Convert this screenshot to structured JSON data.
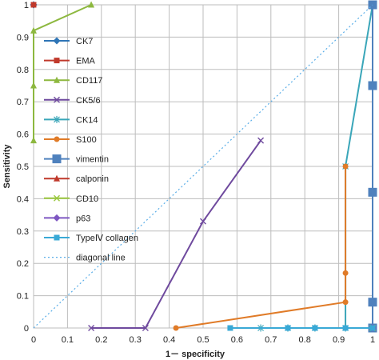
{
  "chart_data": {
    "type": "line",
    "title": "",
    "xlabel": "1－ specificity",
    "ylabel": "Sensitivity",
    "xlim": [
      0,
      1
    ],
    "ylim": [
      0,
      1
    ],
    "x_ticks": [
      "0",
      "0.1",
      "0.2",
      "0.3",
      "0.4",
      "0.5",
      "0.6",
      "0.7",
      "0.8",
      "0.9",
      "1"
    ],
    "y_ticks": [
      "0",
      "0.1",
      "0.2",
      "0.3",
      "0.4",
      "0.5",
      "0.6",
      "0.7",
      "0.8",
      "0.9",
      "1"
    ],
    "grid": true,
    "legend_position": "left",
    "series": [
      {
        "name": "CK7",
        "color": "#2e75b6",
        "marker": "diamond",
        "points": [
          [
            0,
            1
          ],
          [
            0,
            1
          ]
        ]
      },
      {
        "name": "EMA",
        "color": "#c0392b",
        "marker": "square",
        "points": [
          [
            0,
            1
          ],
          [
            0,
            1
          ]
        ]
      },
      {
        "name": "CD117",
        "color": "#8db83f",
        "marker": "triangle",
        "points": [
          [
            0,
            0.58
          ],
          [
            0,
            0.75
          ],
          [
            0,
            0.92
          ],
          [
            0.17,
            1
          ]
        ]
      },
      {
        "name": "CK5/6",
        "color": "#6f4a9e",
        "marker": "x",
        "points": [
          [
            0.17,
            0
          ],
          [
            0.33,
            0
          ],
          [
            0.5,
            0.33
          ],
          [
            0.67,
            0.58
          ]
        ]
      },
      {
        "name": "CK14",
        "color": "#3aa6b9",
        "marker": "star",
        "points": [
          [
            0.67,
            0
          ],
          [
            0.75,
            0
          ],
          [
            0.83,
            0
          ],
          [
            0.92,
            0
          ],
          [
            0.92,
            0.5
          ],
          [
            1,
            1
          ]
        ]
      },
      {
        "name": "S100",
        "color": "#e07b28",
        "marker": "circle",
        "points": [
          [
            0.42,
            0
          ],
          [
            0.92,
            0.08
          ],
          [
            0.92,
            0.17
          ],
          [
            0.92,
            0.5
          ]
        ]
      },
      {
        "name": "vimentin",
        "color": "#4f81bd",
        "marker": "bigsquare",
        "points": [
          [
            1,
            0
          ],
          [
            1,
            0.08
          ],
          [
            1,
            0.42
          ],
          [
            1,
            0.75
          ],
          [
            1,
            1
          ]
        ]
      },
      {
        "name": "calponin",
        "color": "#c0392b",
        "marker": "triangle",
        "points": [
          [
            1,
            0
          ],
          [
            1,
            0
          ]
        ]
      },
      {
        "name": "CD10",
        "color": "#9bc83f",
        "marker": "x",
        "points": [
          [
            1,
            0
          ],
          [
            1,
            0
          ]
        ]
      },
      {
        "name": "p63",
        "color": "#7e57c2",
        "marker": "diamond",
        "points": [
          [
            1,
            0
          ],
          [
            1,
            0
          ]
        ]
      },
      {
        "name": "TypeⅣ collagen",
        "color": "#39a9d6",
        "marker": "square",
        "points": [
          [
            0.58,
            0
          ],
          [
            0.75,
            0
          ],
          [
            0.83,
            0
          ],
          [
            0.92,
            0
          ],
          [
            1,
            0
          ]
        ]
      },
      {
        "name": "diagonal line",
        "color": "#5aaee8",
        "marker": "none",
        "dashed": true,
        "points": [
          [
            0,
            0
          ],
          [
            1,
            1
          ]
        ]
      }
    ]
  }
}
